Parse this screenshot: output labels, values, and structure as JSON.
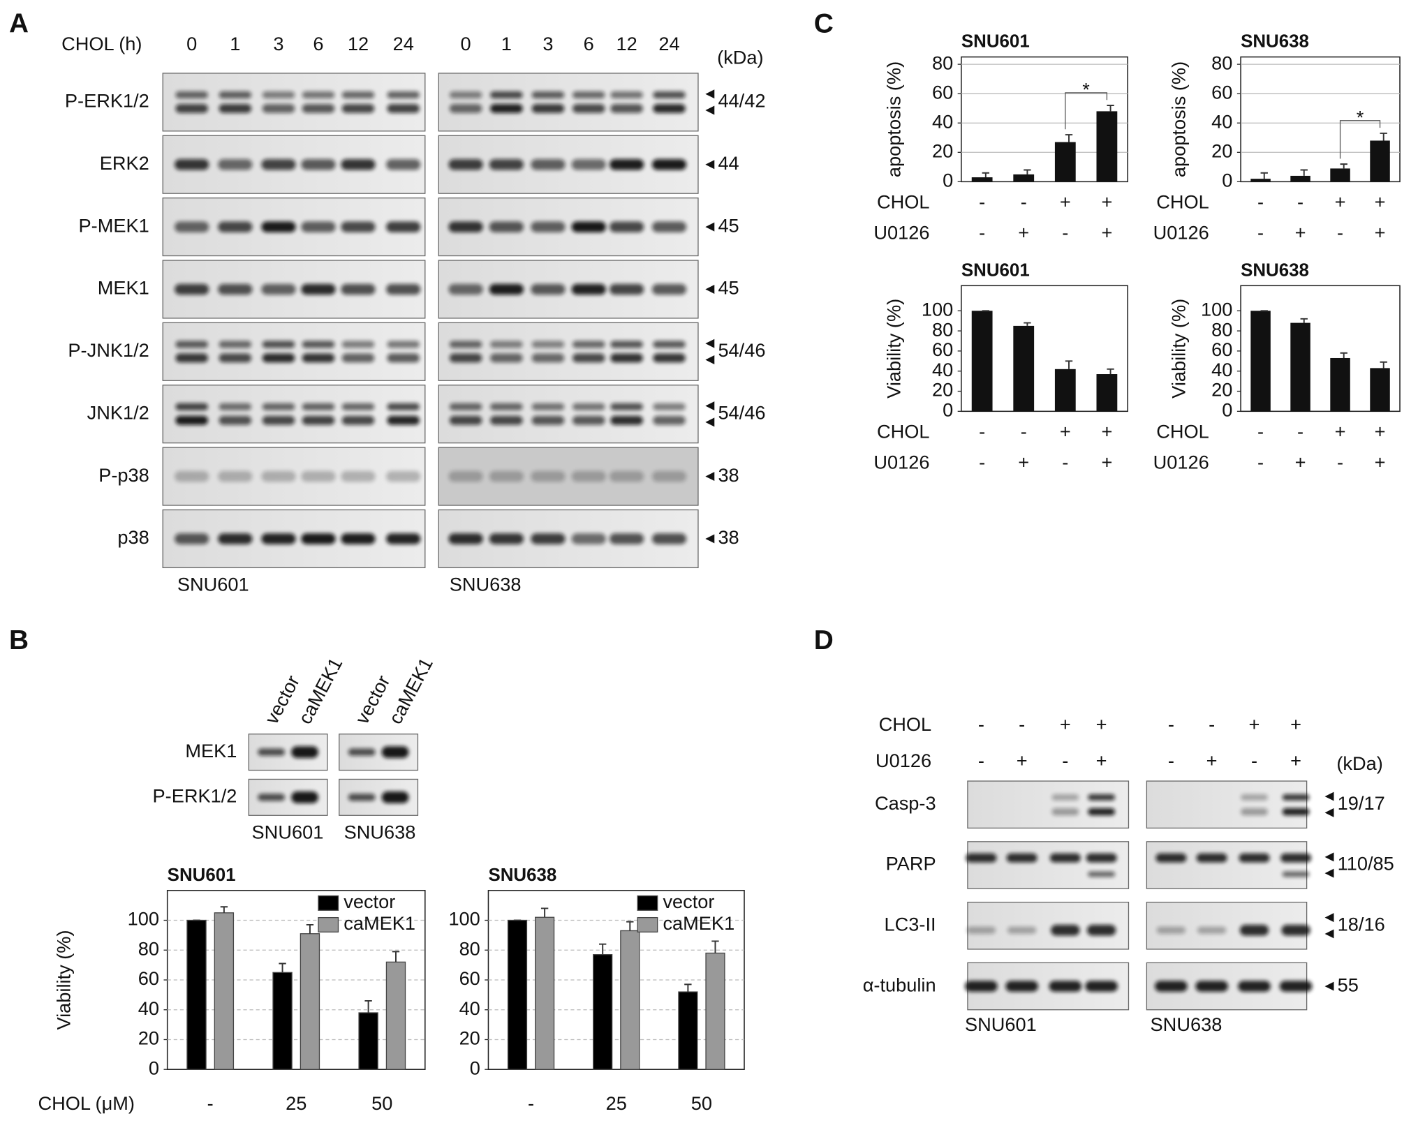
{
  "panels": [
    "A",
    "B",
    "C",
    "D"
  ],
  "blot_a": {
    "time_label": "CHOL (h)",
    "times": [
      "0",
      "1",
      "3",
      "6",
      "12",
      "24"
    ],
    "kda_label": "(kDa)",
    "rows": [
      {
        "name": "P-ERK1/2",
        "kda": "44/42"
      },
      {
        "name": "ERK2",
        "kda": "44"
      },
      {
        "name": "P-MEK1",
        "kda": "45"
      },
      {
        "name": "MEK1",
        "kda": "45"
      },
      {
        "name": "P-JNK1/2",
        "kda": "54/46"
      },
      {
        "name": "JNK1/2",
        "kda": "54/46"
      },
      {
        "name": "P-p38",
        "kda": "38"
      },
      {
        "name": "p38",
        "kda": "38"
      }
    ],
    "cells": [
      "SNU601",
      "SNU638"
    ]
  },
  "blot_b": {
    "lanes": [
      "vector",
      "caMEK1",
      "vector",
      "caMEK1"
    ],
    "rows": [
      "MEK1",
      "P-ERK1/2"
    ],
    "cells": [
      "SNU601",
      "SNU638"
    ]
  },
  "blot_d": {
    "treatments": [
      {
        "name": "CHOL",
        "signs": [
          "-",
          "-",
          "+",
          "+",
          "-",
          "-",
          "+",
          "+"
        ]
      },
      {
        "name": "U0126",
        "signs": [
          "-",
          "+",
          "-",
          "+",
          "-",
          "+",
          "-",
          "+"
        ]
      }
    ],
    "kda_label": "(kDa)",
    "rows": [
      {
        "name": "Casp-3",
        "kda": "19/17"
      },
      {
        "name": "PARP",
        "kda": "110/85"
      },
      {
        "name": "LC3-II",
        "kda": "18/16"
      },
      {
        "name": "α-tubulin",
        "kda": "55"
      }
    ],
    "cells": [
      "SNU601",
      "SNU638"
    ]
  },
  "chart_data": [
    {
      "type": "bar",
      "title": "SNU601",
      "y_label": "apoptosis (%)",
      "color": "#111111",
      "values": [
        3,
        5,
        27,
        48
      ],
      "errors": [
        3,
        3,
        5,
        4
      ],
      "ylim": [
        0,
        85
      ],
      "yticks": [
        0,
        20,
        40,
        60,
        80
      ],
      "grid": true,
      "treatments": [
        {
          "name": "CHOL",
          "signs": [
            "-",
            "-",
            "+",
            "+"
          ]
        },
        {
          "name": "U0126",
          "signs": [
            "-",
            "+",
            "-",
            "+"
          ]
        }
      ],
      "annotation": "*"
    },
    {
      "type": "bar",
      "title": "SNU638",
      "y_label": "apoptosis (%)",
      "color": "#111111",
      "values": [
        2,
        4,
        9,
        28
      ],
      "errors": [
        4,
        4,
        3,
        5
      ],
      "ylim": [
        0,
        85
      ],
      "yticks": [
        0,
        20,
        40,
        60,
        80
      ],
      "grid": true,
      "treatments": [
        {
          "name": "CHOL",
          "signs": [
            "-",
            "-",
            "+",
            "+"
          ]
        },
        {
          "name": "U0126",
          "signs": [
            "-",
            "+",
            "-",
            "+"
          ]
        }
      ],
      "annotation": "*"
    },
    {
      "type": "bar",
      "title": "SNU601",
      "y_label": "Viability (%)",
      "color": "#111111",
      "values": [
        100,
        85,
        42,
        37
      ],
      "errors": [
        0,
        3,
        8,
        5
      ],
      "ylim": [
        0,
        125
      ],
      "yticks": [
        0,
        20,
        40,
        60,
        80,
        100
      ],
      "grid": false,
      "treatments": [
        {
          "name": "CHOL",
          "signs": [
            "-",
            "-",
            "+",
            "+"
          ]
        },
        {
          "name": "U0126",
          "signs": [
            "-",
            "+",
            "-",
            "+"
          ]
        }
      ]
    },
    {
      "type": "bar",
      "title": "SNU638",
      "y_label": "Viability (%)",
      "color": "#111111",
      "values": [
        100,
        88,
        53,
        43
      ],
      "errors": [
        0,
        4,
        5,
        6
      ],
      "ylim": [
        0,
        125
      ],
      "yticks": [
        0,
        20,
        40,
        60,
        80,
        100
      ],
      "grid": false,
      "treatments": [
        {
          "name": "CHOL",
          "signs": [
            "-",
            "-",
            "+",
            "+"
          ]
        },
        {
          "name": "U0126",
          "signs": [
            "-",
            "+",
            "-",
            "+"
          ]
        }
      ]
    },
    {
      "type": "bar",
      "title": "SNU601",
      "y_label": "Viability (%)",
      "x_label": "CHOL (μM)",
      "categories": [
        "-",
        "25",
        "50"
      ],
      "ylim": [
        0,
        120
      ],
      "yticks": [
        0,
        20,
        40,
        60,
        80,
        100
      ],
      "grid": true,
      "series": [
        {
          "name": "vector",
          "color": "#000000",
          "values": [
            100,
            65,
            38
          ],
          "errors": [
            0,
            6,
            8
          ]
        },
        {
          "name": "caMEK1",
          "color": "#999999",
          "values": [
            105,
            91,
            72
          ],
          "errors": [
            4,
            6,
            7
          ]
        }
      ]
    },
    {
      "type": "bar",
      "title": "SNU638",
      "categories": [
        "-",
        "25",
        "50"
      ],
      "ylim": [
        0,
        120
      ],
      "yticks": [
        0,
        20,
        40,
        60,
        80,
        100
      ],
      "grid": true,
      "series": [
        {
          "name": "vector",
          "color": "#000000",
          "values": [
            100,
            77,
            52
          ],
          "errors": [
            0,
            7,
            5
          ]
        },
        {
          "name": "caMEK1",
          "color": "#999999",
          "values": [
            102,
            93,
            78
          ],
          "errors": [
            6,
            6,
            8
          ]
        }
      ]
    }
  ]
}
